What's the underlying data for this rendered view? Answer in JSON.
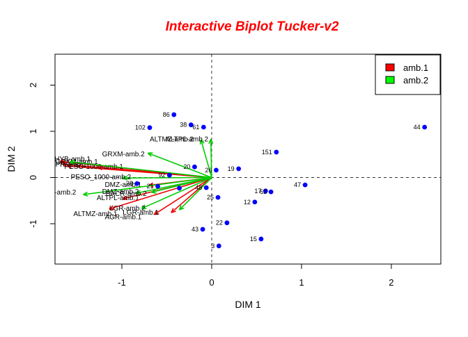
{
  "title": {
    "text": "Interactive Biplot Tucker-v2",
    "color": "#FF0000"
  },
  "axes": {
    "x_label": "DIM 1",
    "y_label": "DIM 2",
    "x_ticks": [
      "-1",
      "0",
      "1",
      "2"
    ],
    "y_ticks": [
      "-1",
      "0",
      "1",
      "2"
    ]
  },
  "legend": {
    "items": [
      {
        "label": "amb.1",
        "color": "#FF0000"
      },
      {
        "label": "amb.2",
        "color": "#00FF00"
      }
    ]
  },
  "chart_data": {
    "type": "scatter",
    "title": "Interactive Biplot Tucker-v2",
    "xlabel": "DIM 1",
    "ylabel": "DIM 2",
    "xlim": [
      -1.744,
      2.551
    ],
    "ylim": [
      -1.872,
      2.669
    ],
    "x_tick_values": [
      -1,
      0,
      1,
      2
    ],
    "y_tick_values": [
      -1,
      0,
      1,
      2
    ],
    "grid": false,
    "zero_lines_dashed": true,
    "point_color": "#0000FF",
    "points": [
      {
        "label": "102",
        "x": -0.69,
        "y": 1.08
      },
      {
        "label": "86",
        "x": -0.42,
        "y": 1.36
      },
      {
        "label": "38",
        "x": -0.23,
        "y": 1.14
      },
      {
        "label": "61",
        "x": -0.09,
        "y": 1.09
      },
      {
        "label": "44",
        "x": 2.37,
        "y": 1.09
      },
      {
        "label": "151",
        "x": 0.72,
        "y": 0.55
      },
      {
        "label": "19",
        "x": 0.3,
        "y": 0.19
      },
      {
        "label": "20",
        "x": -0.19,
        "y": 0.23
      },
      {
        "label": "26",
        "x": 0.05,
        "y": 0.16
      },
      {
        "label": "92",
        "x": -0.47,
        "y": 0.05
      },
      {
        "label": "28",
        "x": -0.83,
        "y": -0.13
      },
      {
        "label": "21",
        "x": -0.6,
        "y": -0.19
      },
      {
        "label": "",
        "x": -0.36,
        "y": -0.23
      },
      {
        "label": "48",
        "x": -0.06,
        "y": -0.22
      },
      {
        "label": "25",
        "x": 0.07,
        "y": -0.43
      },
      {
        "label": "17",
        "x": 0.6,
        "y": -0.29
      },
      {
        "label": "62",
        "x": 0.66,
        "y": -0.31
      },
      {
        "label": "47",
        "x": 1.04,
        "y": -0.16
      },
      {
        "label": "12",
        "x": 0.48,
        "y": -0.53
      },
      {
        "label": "22",
        "x": 0.17,
        "y": -0.98
      },
      {
        "label": "43",
        "x": -0.1,
        "y": -1.12
      },
      {
        "label": "15",
        "x": 0.55,
        "y": -1.33
      },
      {
        "label": "3",
        "x": 0.08,
        "y": -1.48
      }
    ],
    "arrow_series": [
      {
        "name": "amb.1",
        "color": "#EE0000",
        "arrows": [
          {
            "label": "HYB-amb.1",
            "x": -1.69,
            "y": 0.35,
            "lx": -1.75,
            "ly": 0.4
          },
          {
            "label": "GRXM-amb.1",
            "x": -1.66,
            "y": 0.29,
            "lx": -1.74,
            "ly": 0.34
          },
          {
            "label": "PR-amb.1",
            "x": -1.61,
            "y": 0.25,
            "lx": -1.74,
            "ly": 0.28
          },
          {
            "label": "PESO-1000-amb.1",
            "x": -1.27,
            "y": 0.22,
            "lx": -1.64,
            "ly": 0.23
          },
          {
            "label": "DMZ-amb.1",
            "x": -0.7,
            "y": -0.17,
            "lx": -1.19,
            "ly": -0.16
          },
          {
            "label": "ALTPL-amb.1",
            "x": -0.99,
            "y": -0.46,
            "lx": -1.28,
            "ly": -0.44
          },
          {
            "label": "ALTMZ-amb.1",
            "x": -1.14,
            "y": -0.68,
            "lx": -1.54,
            "ly": -0.79
          },
          {
            "label": "LGR-amb.1",
            "x": -0.64,
            "y": -0.8,
            "lx": -0.99,
            "ly": -0.76
          },
          {
            "label": "AGR-amb.1",
            "x": -0.45,
            "y": -0.76,
            "lx": -1.19,
            "ly": -0.86
          }
        ]
      },
      {
        "name": "amb.2",
        "color": "#00CC00",
        "arrows": [
          {
            "label": "GRXM-amb.2",
            "x": -0.71,
            "y": 0.53,
            "lx": -1.22,
            "ly": 0.5
          },
          {
            "label": "ALTPL-amb.2",
            "x": -0.12,
            "y": 0.82,
            "lx": -0.51,
            "ly": 0.83
          },
          {
            "label": "ALTMZ-amb.2",
            "x": -0.01,
            "y": 0.83,
            "lx": -0.69,
            "ly": 0.83
          },
          {
            "label": "PESO_1000-amb.2",
            "x": -0.99,
            "y": -0.01,
            "lx": -1.57,
            "ly": 0.01
          },
          {
            "label": "-amb.2",
            "x": -1.43,
            "y": -0.37,
            "lx": -1.75,
            "ly": -0.32
          },
          {
            "label": "DMZ-amb.2",
            "x": -0.67,
            "y": -0.32,
            "lx": -1.22,
            "ly": -0.31
          },
          {
            "label": "BACR-amb.2",
            "x": -0.84,
            "y": -0.34,
            "lx": -1.18,
            "ly": -0.35
          },
          {
            "label": "LGR-amb.2",
            "x": -0.78,
            "y": -0.67,
            "lx": -1.14,
            "ly": -0.67
          },
          {
            "label": "",
            "x": -0.36,
            "y": -0.7,
            "lx": 0,
            "ly": 0
          },
          {
            "label": "",
            "x": -1.58,
            "y": 0.34,
            "lx": 0,
            "ly": 0
          }
        ]
      }
    ]
  }
}
